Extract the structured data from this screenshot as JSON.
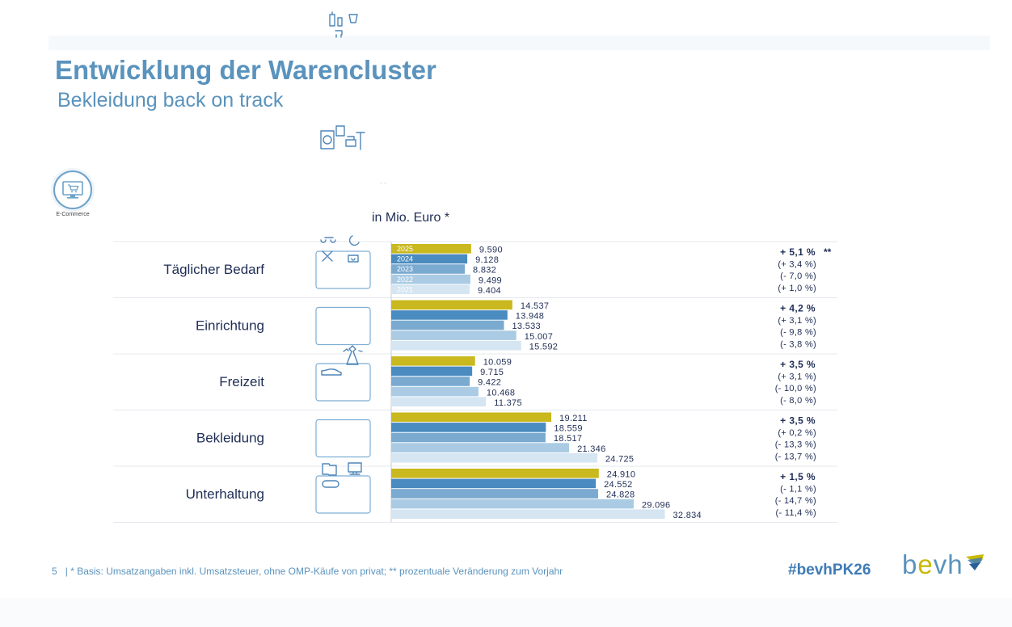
{
  "title": "Entwicklung der Warencluster",
  "subtitle": "Bekleidung back on track",
  "ecommerce_label": "E-Commerce",
  "unit_label": "in Mio. Euro *",
  "dots": "· ·",
  "footer": {
    "page_number": "5",
    "separator": "|",
    "note": "* Basis: Umsatzangaben inkl. Umsatzsteuer, ohne OMP-Käufe von privat; ** prozentuale Veränderung zum Vorjahr"
  },
  "hashtag": "#bevhPK26",
  "logo_text": {
    "b": "b",
    "e": "e",
    "vh": "vh"
  },
  "colors": {
    "primary_blue": "#5a93bd",
    "dark_text": "#1e2d55",
    "y2025": "#c9b81e",
    "y2024": "#4a8bc0",
    "y2023": "#7aaad0",
    "y2022": "#aacbe3",
    "y2021": "#d5e5f2"
  },
  "chart_data": {
    "type": "bar",
    "orientation": "horizontal",
    "unit": "Mio. Euro",
    "xlim": [
      0,
      35000
    ],
    "years": [
      "2025",
      "2024",
      "2023",
      "2022",
      "2021"
    ],
    "categories": [
      "Täglicher Bedarf",
      "Einrichtung",
      "Freizeit",
      "Bekleidung",
      "Unterhaltung"
    ],
    "icons": [
      "daily-needs-icon",
      "furnishing-icon",
      "leisure-icon",
      "clothing-icon",
      "entertainment-icon"
    ],
    "series": [
      {
        "name": "2025",
        "values": [
          9590,
          14537,
          10059,
          19211,
          24910
        ],
        "labels": [
          "9.590",
          "14.537",
          "10.059",
          "19.211",
          "24.910"
        ]
      },
      {
        "name": "2024",
        "values": [
          9128,
          13948,
          9715,
          18559,
          24552
        ],
        "labels": [
          "9.128",
          "13.948",
          "9.715",
          "18.559",
          "24.552"
        ]
      },
      {
        "name": "2023",
        "values": [
          8832,
          13533,
          9422,
          18517,
          24828
        ],
        "labels": [
          "8.832",
          "13.533",
          "9.422",
          "18.517",
          "24.828"
        ]
      },
      {
        "name": "2022",
        "values": [
          9499,
          15007,
          10468,
          21346,
          29096
        ],
        "labels": [
          "9.499",
          "15.007",
          "10.468",
          "21.346",
          "29.096"
        ]
      },
      {
        "name": "2021",
        "values": [
          9404,
          15592,
          11375,
          24725,
          32834
        ],
        "labels": [
          "9.404",
          "15.592",
          "11.375",
          "24.725",
          "32.834"
        ]
      }
    ],
    "changes": [
      [
        "+ 5,1 %",
        "(+ 3,4 %)",
        "(- 7,0 %)",
        "(+ 1,0 %)"
      ],
      [
        "+ 4,2 %",
        "(+ 3,1 %)",
        "(- 9,8 %)",
        "(- 3,8 %)"
      ],
      [
        "+ 3,5 %",
        "(+ 3,1 %)",
        "(- 10,0 %)",
        "(- 8,0 %)"
      ],
      [
        "+ 3,5 %",
        "(+ 0,2 %)",
        "(- 13,3 %)",
        "(- 13,7 %)"
      ],
      [
        "+ 1,5 %",
        "(- 1,1 %)",
        "(- 14,7 %)",
        "(- 11,4 %)"
      ]
    ],
    "change_footnote_marker": "**"
  }
}
